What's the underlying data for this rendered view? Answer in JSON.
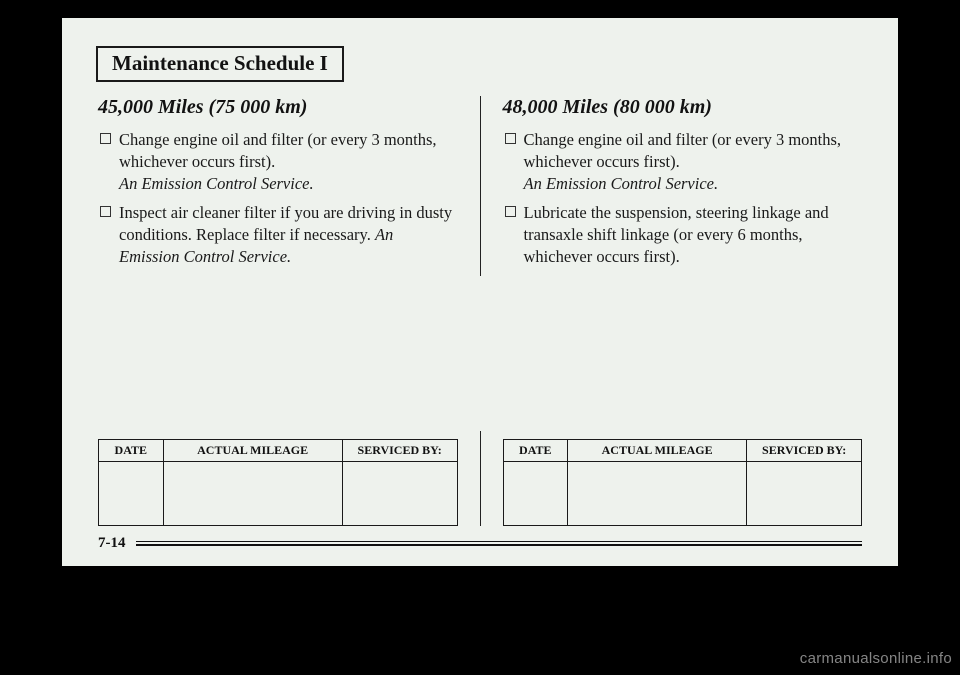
{
  "title": "Maintenance Schedule I",
  "page_num": "7-14",
  "watermark": "carmanualsonline.info",
  "table_headers": {
    "date": "DATE",
    "mileage": "ACTUAL MILEAGE",
    "serviced": "SERVICED BY:"
  },
  "left": {
    "heading": "45,000 Miles (75 000 km)",
    "items": [
      {
        "text": "Change engine oil and filter (or every 3 months, whichever occurs first).",
        "note": "An Emission Control Service."
      },
      {
        "text": "Inspect air cleaner filter if you are driving in dusty conditions. Replace filter if necessary.",
        "note_inline": "An Emission Control Service."
      }
    ]
  },
  "right": {
    "heading": "48,000 Miles (80 000 km)",
    "items": [
      {
        "text": "Change engine oil and filter (or every 3 months, whichever occurs first).",
        "note": "An Emission Control Service."
      },
      {
        "text": "Lubricate the suspension, steering linkage and transaxle shift linkage (or every 6 months, whichever occurs first)."
      }
    ]
  }
}
